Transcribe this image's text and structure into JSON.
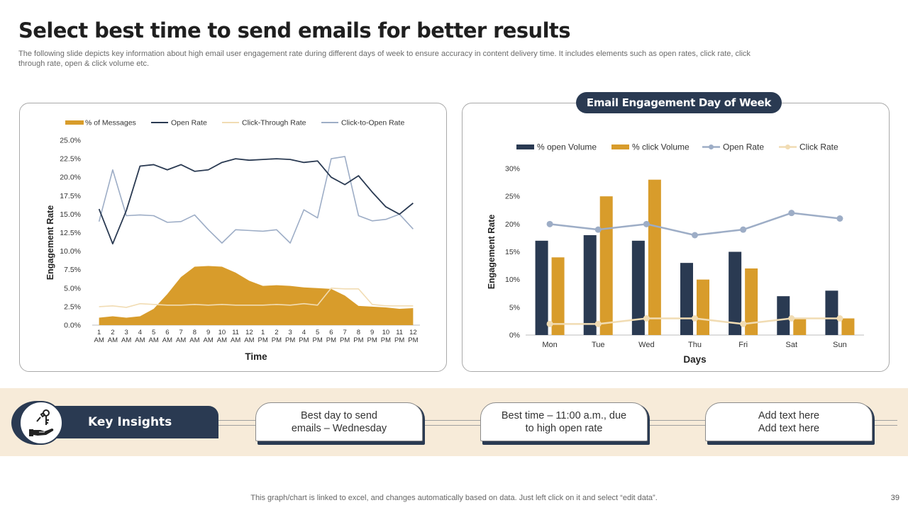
{
  "slide": {
    "title": "Select best time to send emails for better results",
    "subtitle": "The following slide depicts key information about high email user engagement rate during different days of week to ensure accuracy in content delivery time. It includes elements such as open rates, click rate, click through rate, open & click volume etc.",
    "footer": "This graph/chart is linked to excel,  and changes automatically based on data. Just left click on it and select “edit data”.",
    "page_number": "39"
  },
  "colors": {
    "navy": "#2a3a52",
    "gold": "#d89c2b",
    "light_gold": "#f1dcb3",
    "slate": "#9dadc6",
    "band": "#f7ebd9"
  },
  "right_panel": {
    "header": "Email Engagement Day of Week"
  },
  "insights": {
    "label": "Key Insights",
    "icon": "hand-key-icon",
    "cards": [
      {
        "line1": "Best day to send",
        "line2": "emails – Wednesday"
      },
      {
        "line1": "Best time – 11:00 a.m., due",
        "line2": "to high open rate"
      },
      {
        "line1": "Add text here",
        "line2": "Add text here"
      }
    ]
  },
  "chart_data": [
    {
      "type": "line",
      "title": "",
      "xlabel": "Time",
      "ylabel": "Engagement Rate",
      "ylim": [
        0,
        25
      ],
      "y_ticks": [
        "0.0%",
        "2.5%",
        "5.0%",
        "7.5%",
        "10.0%",
        "12.5%",
        "15.0%",
        "17.5%",
        "20.0%",
        "22.5%",
        "25.0%"
      ],
      "categories": [
        {
          "n": "1",
          "p": "AM"
        },
        {
          "n": "2",
          "p": "AM"
        },
        {
          "n": "3",
          "p": "AM"
        },
        {
          "n": "4",
          "p": "AM"
        },
        {
          "n": "5",
          "p": "AM"
        },
        {
          "n": "6",
          "p": "AM"
        },
        {
          "n": "7",
          "p": "AM"
        },
        {
          "n": "8",
          "p": "AM"
        },
        {
          "n": "9",
          "p": "AM"
        },
        {
          "n": "10",
          "p": "AM"
        },
        {
          "n": "11",
          "p": "AM"
        },
        {
          "n": "12",
          "p": "AM"
        },
        {
          "n": "1",
          "p": "PM"
        },
        {
          "n": "2",
          "p": "PM"
        },
        {
          "n": "3",
          "p": "PM"
        },
        {
          "n": "4",
          "p": "PM"
        },
        {
          "n": "5",
          "p": "PM"
        },
        {
          "n": "6",
          "p": "PM"
        },
        {
          "n": "7",
          "p": "PM"
        },
        {
          "n": "8",
          "p": "PM"
        },
        {
          "n": "9",
          "p": "PM"
        },
        {
          "n": "10",
          "p": "PM"
        },
        {
          "n": "11",
          "p": "PM"
        },
        {
          "n": "12",
          "p": "PM"
        }
      ],
      "series": [
        {
          "name": "% of Messages",
          "kind": "area",
          "color": "#d89c2b",
          "values": [
            1.0,
            1.2,
            1.0,
            1.2,
            2.2,
            4.2,
            6.5,
            7.9,
            8.0,
            7.9,
            7.1,
            6.0,
            5.3,
            5.4,
            5.3,
            5.1,
            5.0,
            4.9,
            4.0,
            2.6,
            2.5,
            2.4,
            2.2,
            2.3
          ]
        },
        {
          "name": "Open Rate",
          "kind": "line",
          "color": "#2a3a52",
          "values": [
            15.7,
            11.0,
            15.5,
            21.5,
            21.7,
            21.0,
            21.7,
            20.8,
            21.0,
            22.0,
            22.5,
            22.3,
            22.4,
            22.5,
            22.4,
            22.0,
            22.2,
            20.0,
            19.0,
            20.2,
            18.0,
            16.0,
            15.0,
            16.5
          ]
        },
        {
          "name": "Click-Through Rate",
          "kind": "line",
          "color": "#f1dcb3",
          "values": [
            2.5,
            2.6,
            2.4,
            2.9,
            2.8,
            2.7,
            2.7,
            2.8,
            2.7,
            2.8,
            2.7,
            2.7,
            2.7,
            2.8,
            2.7,
            2.9,
            2.7,
            5.0,
            4.9,
            4.9,
            2.8,
            2.6,
            2.6,
            2.6
          ]
        },
        {
          "name": "Click-to-Open Rate",
          "kind": "line",
          "color": "#9dadc6",
          "values": [
            14.0,
            21.0,
            14.8,
            14.9,
            14.8,
            13.9,
            14.0,
            14.9,
            12.9,
            11.1,
            12.9,
            12.8,
            12.7,
            12.9,
            11.1,
            15.6,
            14.5,
            22.5,
            22.8,
            14.8,
            14.1,
            14.3,
            15.0,
            13.0
          ]
        }
      ]
    },
    {
      "type": "bar",
      "title": "Email Engagement Day of Week",
      "xlabel": "Days",
      "ylabel": "Engagement Rate",
      "ylim": [
        0,
        30
      ],
      "y_ticks": [
        "0%",
        "5%",
        "10%",
        "15%",
        "20%",
        "25%",
        "30%"
      ],
      "categories": [
        "Mon",
        "Tue",
        "Wed",
        "Thu",
        "Fri",
        "Sat",
        "Sun"
      ],
      "series": [
        {
          "name": "% open Volume",
          "kind": "bar",
          "color": "#2a3a52",
          "values": [
            17,
            18,
            17,
            13,
            15,
            7,
            8
          ]
        },
        {
          "name": "% click Volume",
          "kind": "bar",
          "color": "#d89c2b",
          "values": [
            14,
            25,
            28,
            10,
            12,
            3,
            3
          ]
        },
        {
          "name": "Open Rate",
          "kind": "line",
          "color": "#9dadc6",
          "values": [
            20,
            19,
            20,
            18,
            19,
            22,
            21
          ]
        },
        {
          "name": "Click Rate",
          "kind": "line",
          "color": "#f1dcb3",
          "values": [
            2,
            2,
            3,
            3,
            2,
            3,
            3
          ]
        }
      ]
    }
  ]
}
